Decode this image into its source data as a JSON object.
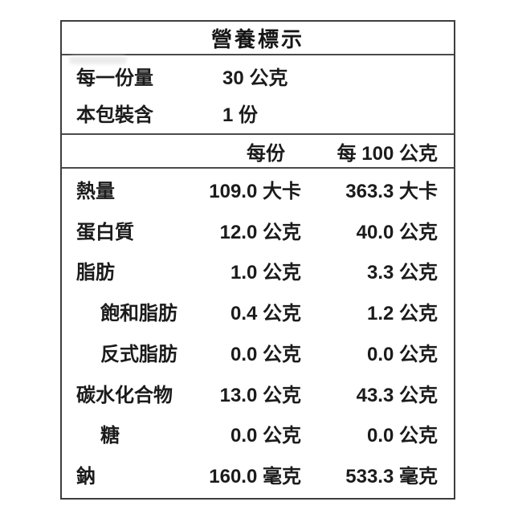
{
  "title": "營養標示",
  "serving_info": [
    {
      "label": "每一份量",
      "value": "30 公克"
    },
    {
      "label": "本包裝含",
      "value": "1 份"
    }
  ],
  "columns": {
    "per_serving": "每份",
    "per_100g": "每 100 公克"
  },
  "rows": [
    {
      "label": "熱量",
      "indent": false,
      "per_serving": "109.0 大卡",
      "per_100g": "363.3 大卡"
    },
    {
      "label": "蛋白質",
      "indent": false,
      "per_serving": "12.0 公克",
      "per_100g": "40.0 公克"
    },
    {
      "label": "脂肪",
      "indent": false,
      "per_serving": "1.0 公克",
      "per_100g": "3.3 公克"
    },
    {
      "label": "飽和脂肪",
      "indent": true,
      "per_serving": "0.4 公克",
      "per_100g": "1.2 公克"
    },
    {
      "label": "反式脂肪",
      "indent": true,
      "per_serving": "0.0 公克",
      "per_100g": "0.0 公克"
    },
    {
      "label": "碳水化合物",
      "indent": false,
      "per_serving": "13.0 公克",
      "per_100g": "43.3 公克"
    },
    {
      "label": "糖",
      "indent": true,
      "per_serving": "0.0 公克",
      "per_100g": "0.0 公克"
    },
    {
      "label": "鈉",
      "indent": false,
      "per_serving": "160.0 毫克",
      "per_100g": "533.3 毫克"
    }
  ],
  "colors": {
    "text": "#1b1b1b",
    "border": "#3d3d3d",
    "background": "#ffffff"
  }
}
